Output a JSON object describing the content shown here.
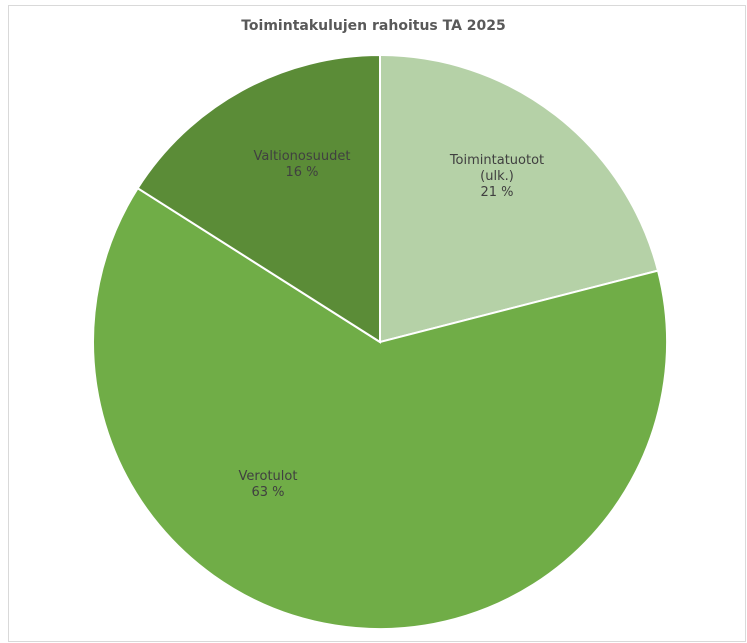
{
  "chart_data": {
    "type": "pie",
    "title": "Toimintakulujen rahoitus TA 2025",
    "categories": [
      "Toimintatuotot (ulk.)",
      "Verotulot",
      "Valtionosuudet"
    ],
    "values": [
      21,
      63,
      16
    ],
    "value_labels": [
      "21 %",
      "63 %",
      "16 %"
    ],
    "colors": [
      "#b5d1a7",
      "#70ad47",
      "#5b8c37"
    ]
  }
}
